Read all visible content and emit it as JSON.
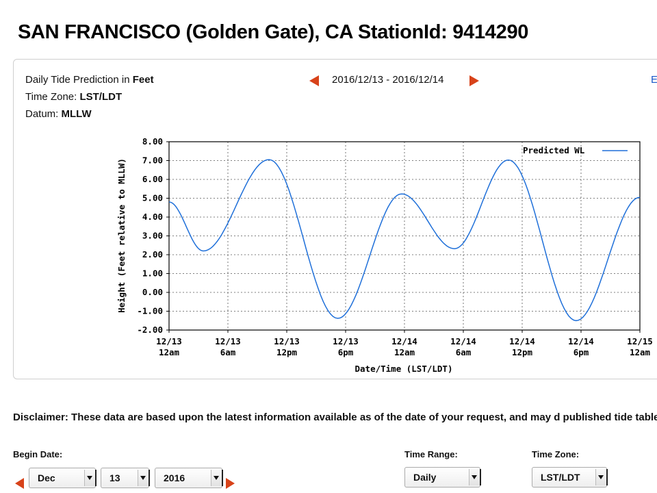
{
  "station": {
    "title": "SAN FRANCISCO (Golden Gate), CA  StationId: 9414290"
  },
  "info": {
    "prediction_prefix": "Daily Tide Prediction in ",
    "prediction_unit": "Feet",
    "timezone_label": "Time Zone: ",
    "timezone_value": "LST/LDT",
    "datum_label": "Datum: ",
    "datum_value": "MLLW",
    "date_range": "2016/12/13 - 2016/12/14",
    "edge_letter": "E"
  },
  "colors": {
    "accent_arrow": "#d8431a",
    "series_line": "#1e6fd9"
  },
  "icons": {
    "prev": "left-triangle-arrow",
    "next": "right-triangle-arrow"
  },
  "chart_data": {
    "type": "line",
    "title": "",
    "xlabel": "Date/Time (LST/LDT)",
    "ylabel": "Height (Feet relative to MLLW)",
    "ylim": [
      -2,
      8
    ],
    "xlim_hours": [
      0,
      48
    ],
    "yticks": [
      "8.00",
      "7.00",
      "6.00",
      "5.00",
      "4.00",
      "3.00",
      "2.00",
      "1.00",
      "0.00",
      "-1.00",
      "-2.00"
    ],
    "xticks": [
      {
        "date": "12/13",
        "time": "12am"
      },
      {
        "date": "12/13",
        "time": "6am"
      },
      {
        "date": "12/13",
        "time": "12pm"
      },
      {
        "date": "12/13",
        "time": "6pm"
      },
      {
        "date": "12/14",
        "time": "12am"
      },
      {
        "date": "12/14",
        "time": "6am"
      },
      {
        "date": "12/14",
        "time": "12pm"
      },
      {
        "date": "12/14",
        "time": "6pm"
      },
      {
        "date": "12/15",
        "time": "12am"
      }
    ],
    "grid": true,
    "legend_position": "top-right",
    "series": [
      {
        "name": "Predicted WL",
        "x_hours": [
          0,
          3.5,
          10.2,
          17.2,
          23.7,
          29.1,
          34.6,
          41.5,
          48
        ],
        "y": [
          4.8,
          2.2,
          7.05,
          -1.38,
          5.23,
          2.32,
          7.03,
          -1.5,
          5.05
        ]
      }
    ]
  },
  "disclaimer": {
    "text": "Disclaimer: These data are based upon the latest information available as of the date of your request, and may d published tide tables."
  },
  "form": {
    "begin_date_label": "Begin Date:",
    "month": "Dec",
    "day": "13",
    "year": "2016",
    "time_range_label": "Time Range:",
    "time_range_value": "Daily",
    "time_zone_label": "Time Zone:",
    "time_zone_value": "LST/LDT"
  }
}
